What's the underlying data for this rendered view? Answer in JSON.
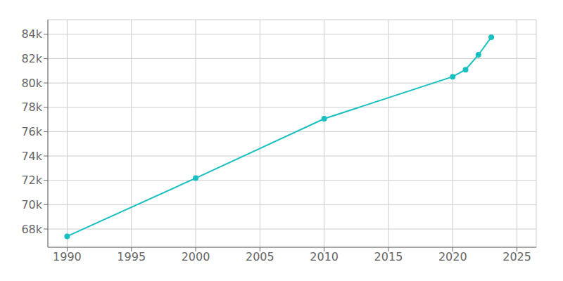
{
  "chart_data": {
    "type": "line",
    "x": [
      1990,
      2000,
      2010,
      2020,
      2021,
      2022,
      2023
    ],
    "values": [
      67400,
      72182,
      77062,
      80514,
      81093,
      82316,
      83753
    ],
    "color": "#1ABFBF",
    "marker": "circle",
    "xlim": [
      1988.5,
      2026.5
    ],
    "ylim": [
      66500,
      85200
    ],
    "xticks": [
      1990,
      1995,
      2000,
      2005,
      2010,
      2015,
      2020,
      2025
    ],
    "yticks": [
      {
        "value": 68000,
        "label": "68k"
      },
      {
        "value": 70000,
        "label": "70k"
      },
      {
        "value": 72000,
        "label": "72k"
      },
      {
        "value": 74000,
        "label": "74k"
      },
      {
        "value": 76000,
        "label": "76k"
      },
      {
        "value": 78000,
        "label": "78k"
      },
      {
        "value": 80000,
        "label": "80k"
      },
      {
        "value": 82000,
        "label": "82k"
      },
      {
        "value": 84000,
        "label": "84k"
      }
    ],
    "grid": true
  }
}
